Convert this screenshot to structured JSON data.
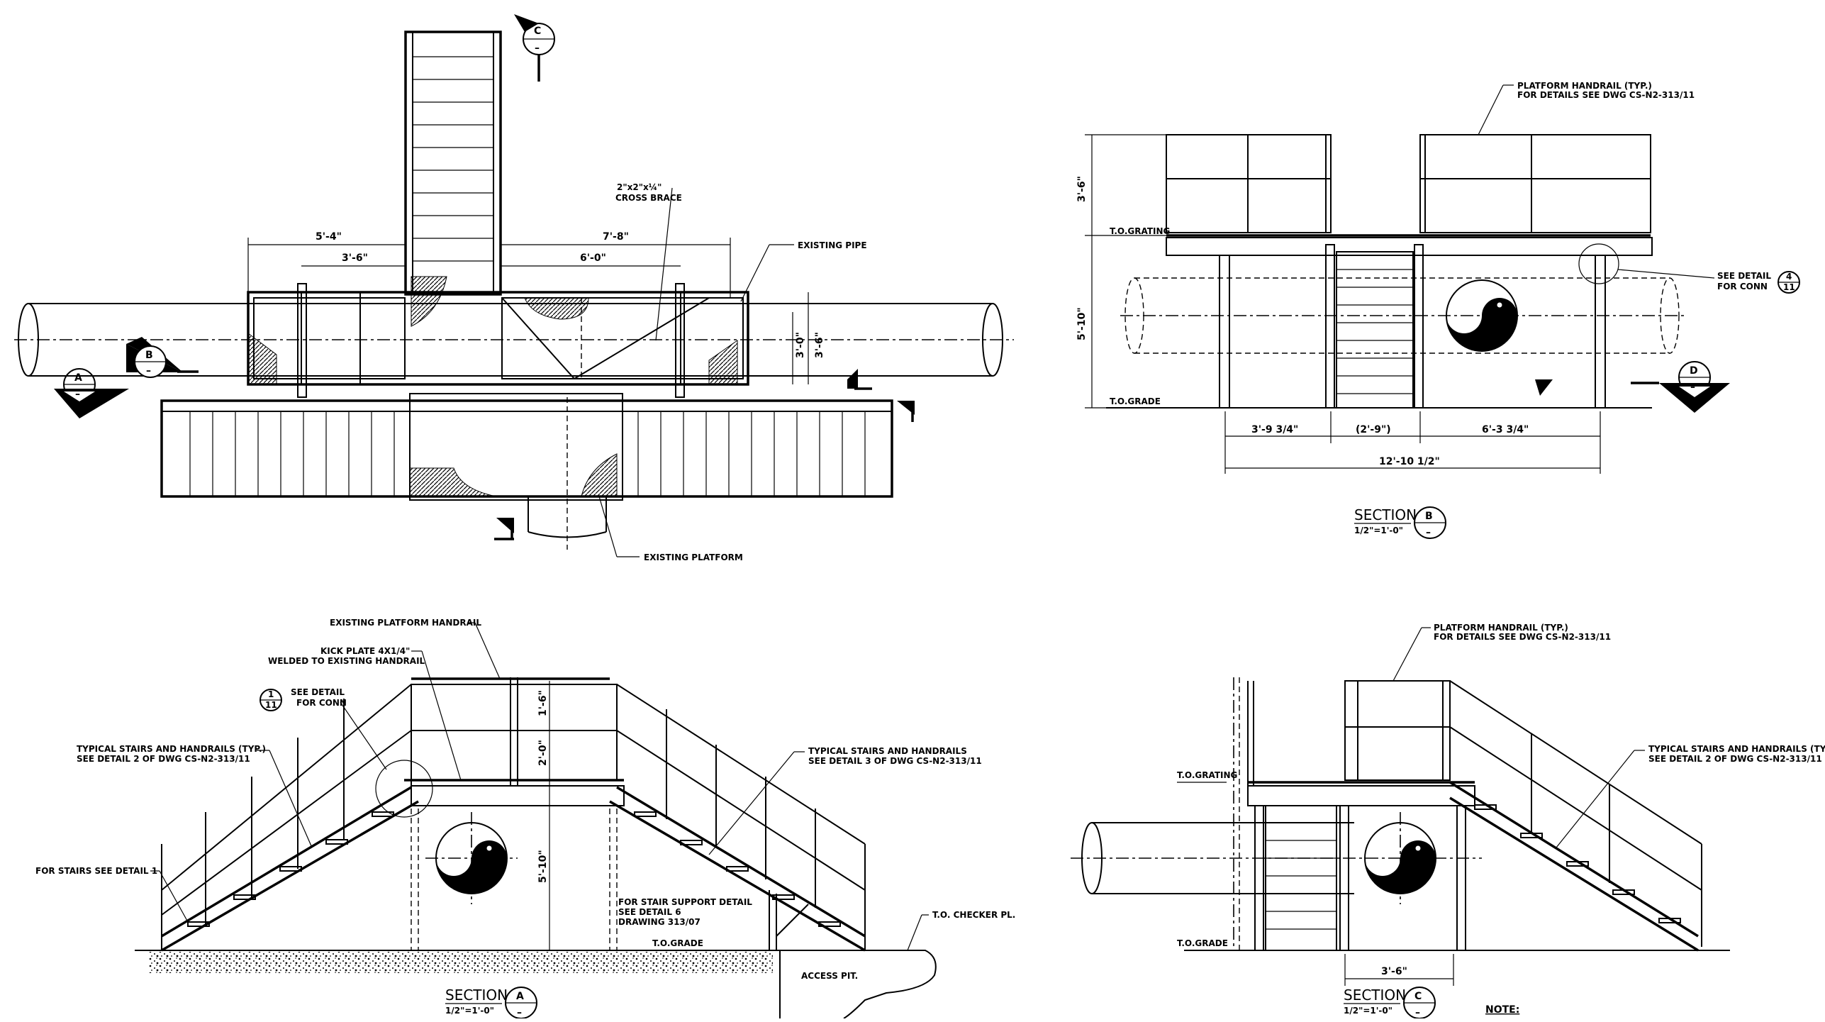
{
  "plan": {
    "dim_5_4": "5'-4\"",
    "dim_3_6": "3'-6\"",
    "dim_7_8": "7'-8\"",
    "dim_6_0": "6'-0\"",
    "dim_3_0": "3'-0\"",
    "dim_3_6v": "3'-6\"",
    "cross_brace_1": "2\"x2\"x¼\"",
    "cross_brace_2": "CROSS BRACE",
    "existing_pipe": "EXISTING PIPE",
    "existing_platform": "EXISTING PLATFORM",
    "marker_a": "A",
    "marker_b": "B",
    "marker_c": "C",
    "marker_dash": "–"
  },
  "section_b": {
    "handrail_1": "PLATFORM HANDRAIL (TYP.)",
    "handrail_2": "FOR DETAILS SEE DWG CS-N2-313/11",
    "dim_3_6": "3'-6\"",
    "dim_5_10": "5'-10\"",
    "to_grating": "T.O.GRATING",
    "to_grade": "T.O.GRADE",
    "see_detail_1": "SEE DETAIL",
    "see_detail_2": "FOR CONN",
    "detail_top": "4",
    "detail_bottom": "11",
    "dim_3_9": "3'-9 3/4\"",
    "dim_2_9": "(2'-9\")",
    "dim_6_3": "6'-3 3/4\"",
    "dim_12_10": "12'-10 1/2\"",
    "marker_d": "D",
    "title": "SECTION",
    "letter": "B",
    "scale": "1/2\"=1'-0\"",
    "dash": "–"
  },
  "section_a": {
    "existing_handrail": "EXISTING PLATFORM HANDRAIL",
    "kick_1": "KICK PLATE 4X1/4\"",
    "kick_2": "WELDED TO EXISTING HANDRAIL",
    "see_detail_1": "SEE DETAIL",
    "see_detail_2": "FOR CONN",
    "detail_top": "1",
    "detail_bottom": "11",
    "typ_left_1": "TYPICAL STAIRS AND HANDRAILS (TYP.)",
    "typ_left_2": "SEE DETAIL 2 OF DWG CS-N2-313/11",
    "typ_right_1": "TYPICAL STAIRS AND HANDRAILS",
    "typ_right_2": "SEE DETAIL 3 OF DWG CS-N2-313/11",
    "for_stairs": "FOR STAIRS SEE DETAIL 1",
    "dim_1_6": "1'-6\"",
    "dim_2_0": "2'-0\"",
    "dim_5_10": "5'-10\"",
    "support_1": "FOR STAIR SUPPORT DETAIL",
    "support_2": "SEE DETAIL 6",
    "support_3": "DRAWING 313/07",
    "to_grade": "T.O.GRADE",
    "checker": "T.O. CHECKER PL.",
    "access_pit": "ACCESS PIT.",
    "title": "SECTION",
    "letter": "A",
    "scale": "1/2\"=1'-0\"",
    "dash": "–"
  },
  "section_c": {
    "handrail_1": "PLATFORM HANDRAIL (TYP.)",
    "handrail_2": "FOR DETAILS SEE DWG CS-N2-313/11",
    "to_grating": "T.O.GRATING",
    "to_grade": "T.O.GRADE",
    "typ_1": "TYPICAL STAIRS AND HANDRAILS (TYP.)",
    "typ_2": "SEE DETAIL 2 OF DWG CS-N2-313/11",
    "dim_3_6": "3'-6\"",
    "title": "SECTION",
    "letter": "C",
    "scale": "1/2\"=1'-0\"",
    "dash": "–",
    "note": "NOTE:"
  }
}
